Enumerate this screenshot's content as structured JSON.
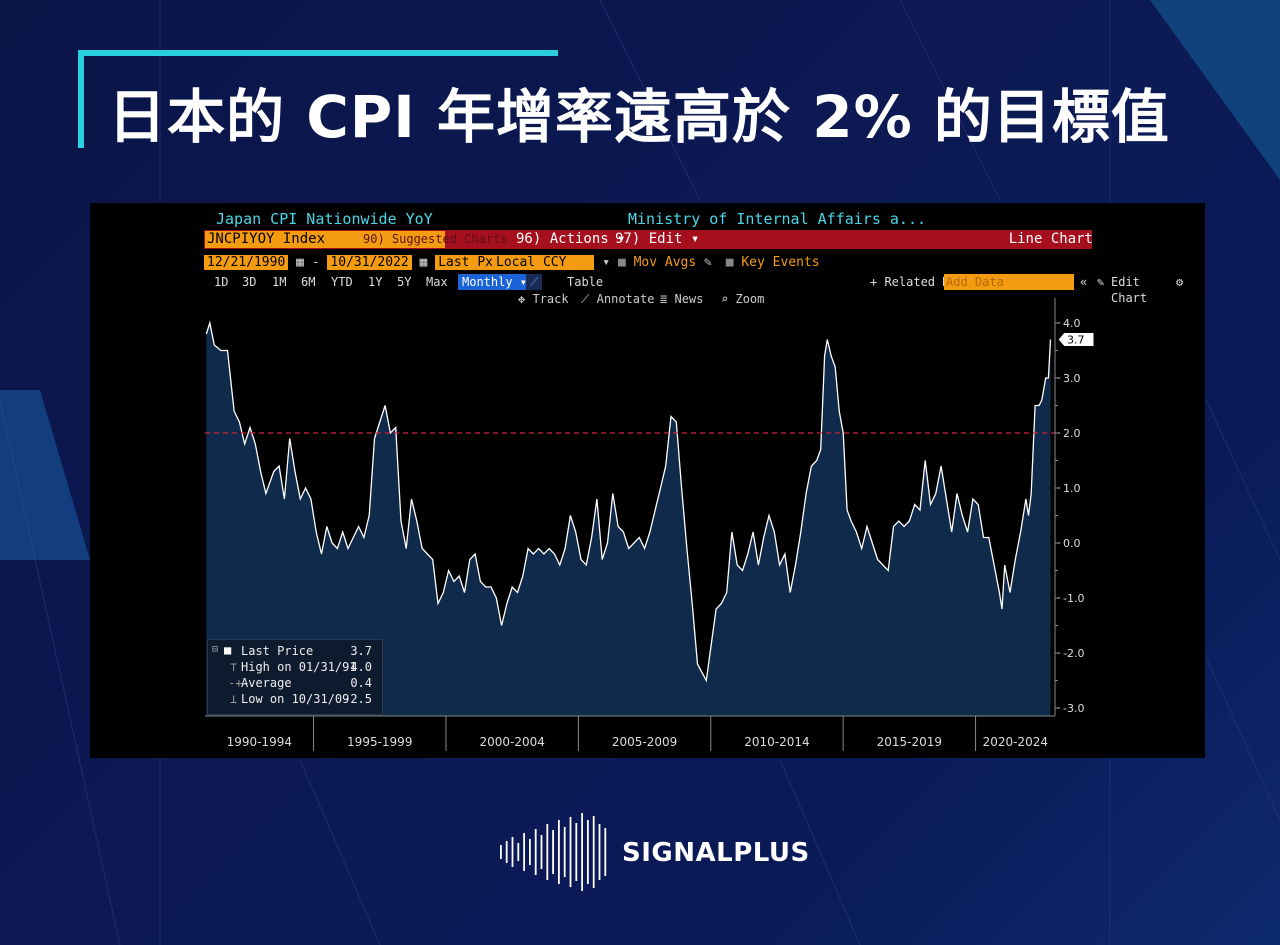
{
  "title": "日本的 CPI 年增率遠高於 2% 的目標值",
  "terminal": {
    "header_left": "Japan CPI Nationwide YoY",
    "header_right": "Ministry of Internal Affairs a...",
    "ticker": "JNCPIYOY Index",
    "suggested": "90) Suggested Charts",
    "actions": "96) Actions ▾",
    "edit": "97) Edit ▾",
    "chart_type_label": "Line Chart",
    "start_date": "12/21/1990",
    "end_date": "10/31/2022",
    "field": "Last Px",
    "currency": "Local CCY",
    "mov_avgs": "Mov Avgs",
    "key_events": "Key Events",
    "periods": [
      "1D",
      "3D",
      "1M",
      "6M",
      "YTD",
      "1Y",
      "5Y",
      "Max"
    ],
    "frequency": "Monthly ▾",
    "table": "Table",
    "related": "+ Related Dat",
    "add_data": "Add Data",
    "edit_chart": "Edit Chart",
    "track": "Track",
    "annotate": "Annotate",
    "news": "News",
    "zoom": "Zoom"
  },
  "legend": {
    "last_price_label": "Last Price",
    "last_price_value": "3.7",
    "high_label": "High on 01/31/91",
    "high_value": "4.0",
    "average_label": "Average",
    "average_value": "0.4",
    "low_label": "Low on 10/31/09",
    "low_value": "-2.5"
  },
  "brand": "SIGNALPLUS",
  "colors": {
    "line": "#ffffff",
    "area": "#0f2a4a",
    "target_line": "#d0243a",
    "accent": "#2ad0e0",
    "field_orange": "#f39c12",
    "toolbar_red": "#a50f1e"
  },
  "chart_data": {
    "type": "area",
    "title": "Japan CPI Nationwide YoY",
    "xlabel": "",
    "ylabel": "",
    "ylim": [
      -3.0,
      4.0
    ],
    "xlim": [
      1990.9,
      2023.0
    ],
    "y_ticks": [
      "4.0",
      "3.0",
      "2.0",
      "1.0",
      "0.0",
      "-1.0",
      "-2.0",
      "-3.0"
    ],
    "x_period_labels": [
      "1990-1994",
      "1995-1999",
      "2000-2004",
      "2005-2009",
      "2010-2014",
      "2015-2019",
      "2020-2024"
    ],
    "reference_line": 2.0,
    "last_value_label": "3.7",
    "series": [
      {
        "values": [
          [
            1990.95,
            3.8
          ],
          [
            1991.08,
            4.0
          ],
          [
            1991.25,
            3.6
          ],
          [
            1991.5,
            3.5
          ],
          [
            1991.75,
            3.5
          ],
          [
            1992.0,
            2.4
          ],
          [
            1992.2,
            2.2
          ],
          [
            1992.4,
            1.8
          ],
          [
            1992.6,
            2.1
          ],
          [
            1992.8,
            1.8
          ],
          [
            1993.0,
            1.3
          ],
          [
            1993.2,
            0.9
          ],
          [
            1993.5,
            1.3
          ],
          [
            1993.7,
            1.4
          ],
          [
            1993.9,
            0.8
          ],
          [
            1994.1,
            1.9
          ],
          [
            1994.3,
            1.3
          ],
          [
            1994.5,
            0.8
          ],
          [
            1994.7,
            1.0
          ],
          [
            1994.9,
            0.8
          ],
          [
            1995.1,
            0.2
          ],
          [
            1995.3,
            -0.2
          ],
          [
            1995.5,
            0.3
          ],
          [
            1995.7,
            0.0
          ],
          [
            1995.9,
            -0.1
          ],
          [
            1996.1,
            0.2
          ],
          [
            1996.3,
            -0.1
          ],
          [
            1996.5,
            0.1
          ],
          [
            1996.7,
            0.3
          ],
          [
            1996.9,
            0.1
          ],
          [
            1997.1,
            0.5
          ],
          [
            1997.3,
            1.9
          ],
          [
            1997.5,
            2.2
          ],
          [
            1997.7,
            2.5
          ],
          [
            1997.9,
            2.0
          ],
          [
            1998.1,
            2.1
          ],
          [
            1998.3,
            0.4
          ],
          [
            1998.5,
            -0.1
          ],
          [
            1998.7,
            0.8
          ],
          [
            1998.9,
            0.4
          ],
          [
            1999.1,
            -0.1
          ],
          [
            1999.3,
            -0.2
          ],
          [
            1999.5,
            -0.3
          ],
          [
            1999.7,
            -1.1
          ],
          [
            1999.9,
            -0.9
          ],
          [
            2000.1,
            -0.5
          ],
          [
            2000.3,
            -0.7
          ],
          [
            2000.5,
            -0.6
          ],
          [
            2000.7,
            -0.9
          ],
          [
            2000.9,
            -0.3
          ],
          [
            2001.1,
            -0.2
          ],
          [
            2001.3,
            -0.7
          ],
          [
            2001.5,
            -0.8
          ],
          [
            2001.7,
            -0.8
          ],
          [
            2001.9,
            -1.0
          ],
          [
            2002.1,
            -1.5
          ],
          [
            2002.3,
            -1.1
          ],
          [
            2002.5,
            -0.8
          ],
          [
            2002.7,
            -0.9
          ],
          [
            2002.9,
            -0.6
          ],
          [
            2003.1,
            -0.1
          ],
          [
            2003.3,
            -0.2
          ],
          [
            2003.5,
            -0.1
          ],
          [
            2003.7,
            -0.2
          ],
          [
            2003.9,
            -0.1
          ],
          [
            2004.1,
            -0.2
          ],
          [
            2004.3,
            -0.4
          ],
          [
            2004.5,
            -0.1
          ],
          [
            2004.7,
            0.5
          ],
          [
            2004.9,
            0.2
          ],
          [
            2005.1,
            -0.3
          ],
          [
            2005.3,
            -0.4
          ],
          [
            2005.5,
            0.1
          ],
          [
            2005.7,
            0.8
          ],
          [
            2005.9,
            -0.3
          ],
          [
            2006.1,
            0.0
          ],
          [
            2006.3,
            0.9
          ],
          [
            2006.5,
            0.3
          ],
          [
            2006.7,
            0.2
          ],
          [
            2006.9,
            -0.1
          ],
          [
            2007.1,
            0.0
          ],
          [
            2007.3,
            0.1
          ],
          [
            2007.5,
            -0.1
          ],
          [
            2007.7,
            0.2
          ],
          [
            2007.9,
            0.6
          ],
          [
            2008.1,
            1.0
          ],
          [
            2008.3,
            1.4
          ],
          [
            2008.5,
            2.3
          ],
          [
            2008.7,
            2.2
          ],
          [
            2008.9,
            1.0
          ],
          [
            2009.1,
            -0.1
          ],
          [
            2009.3,
            -1.1
          ],
          [
            2009.5,
            -2.2
          ],
          [
            2009.83,
            -2.5
          ],
          [
            2010.0,
            -1.9
          ],
          [
            2010.2,
            -1.2
          ],
          [
            2010.4,
            -1.1
          ],
          [
            2010.6,
            -0.9
          ],
          [
            2010.8,
            0.2
          ],
          [
            2011.0,
            -0.4
          ],
          [
            2011.2,
            -0.5
          ],
          [
            2011.4,
            -0.2
          ],
          [
            2011.6,
            0.2
          ],
          [
            2011.8,
            -0.4
          ],
          [
            2012.0,
            0.1
          ],
          [
            2012.2,
            0.5
          ],
          [
            2012.4,
            0.2
          ],
          [
            2012.6,
            -0.4
          ],
          [
            2012.8,
            -0.2
          ],
          [
            2013.0,
            -0.9
          ],
          [
            2013.2,
            -0.4
          ],
          [
            2013.4,
            0.2
          ],
          [
            2013.6,
            0.9
          ],
          [
            2013.8,
            1.4
          ],
          [
            2014.0,
            1.5
          ],
          [
            2014.15,
            1.7
          ],
          [
            2014.3,
            3.4
          ],
          [
            2014.4,
            3.7
          ],
          [
            2014.55,
            3.4
          ],
          [
            2014.7,
            3.2
          ],
          [
            2014.85,
            2.4
          ],
          [
            2015.0,
            2.0
          ],
          [
            2015.15,
            0.6
          ],
          [
            2015.3,
            0.4
          ],
          [
            2015.5,
            0.2
          ],
          [
            2015.7,
            -0.1
          ],
          [
            2015.9,
            0.3
          ],
          [
            2016.1,
            0.0
          ],
          [
            2016.3,
            -0.3
          ],
          [
            2016.5,
            -0.4
          ],
          [
            2016.7,
            -0.5
          ],
          [
            2016.9,
            0.3
          ],
          [
            2017.1,
            0.4
          ],
          [
            2017.3,
            0.3
          ],
          [
            2017.5,
            0.4
          ],
          [
            2017.7,
            0.7
          ],
          [
            2017.9,
            0.6
          ],
          [
            2018.1,
            1.5
          ],
          [
            2018.3,
            0.7
          ],
          [
            2018.5,
            0.9
          ],
          [
            2018.7,
            1.4
          ],
          [
            2018.9,
            0.8
          ],
          [
            2019.1,
            0.2
          ],
          [
            2019.3,
            0.9
          ],
          [
            2019.5,
            0.5
          ],
          [
            2019.7,
            0.2
          ],
          [
            2019.9,
            0.8
          ],
          [
            2020.1,
            0.7
          ],
          [
            2020.3,
            0.1
          ],
          [
            2020.5,
            0.1
          ],
          [
            2020.7,
            -0.4
          ],
          [
            2020.9,
            -0.9
          ],
          [
            2021.0,
            -1.2
          ],
          [
            2021.1,
            -0.4
          ],
          [
            2021.3,
            -0.9
          ],
          [
            2021.5,
            -0.3
          ],
          [
            2021.7,
            0.2
          ],
          [
            2021.9,
            0.8
          ],
          [
            2022.0,
            0.5
          ],
          [
            2022.1,
            0.9
          ],
          [
            2022.25,
            2.5
          ],
          [
            2022.4,
            2.5
          ],
          [
            2022.5,
            2.6
          ],
          [
            2022.65,
            3.0
          ],
          [
            2022.75,
            3.0
          ],
          [
            2022.83,
            3.7
          ]
        ]
      }
    ]
  }
}
